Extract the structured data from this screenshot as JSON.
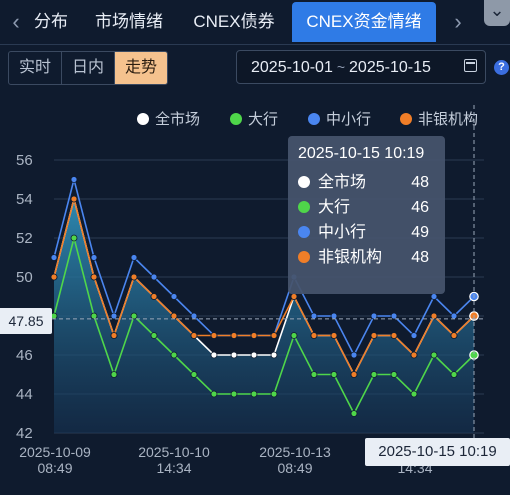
{
  "tabs": [
    {
      "label": "分布"
    },
    {
      "label": "市场情绪"
    },
    {
      "label": "CNEX债券"
    },
    {
      "label": "CNEX资金情绪"
    }
  ],
  "icons": {
    "prev": "chevron-left-icon",
    "next": "chevron-right-icon",
    "menu": "chevron-down-icon",
    "calendar": "calendar-icon",
    "help": "help-icon"
  },
  "range_buttons": [
    {
      "label": "实时"
    },
    {
      "label": "日内"
    },
    {
      "label": "走势"
    }
  ],
  "date_range": {
    "start": "2025-10-01",
    "separator": "~",
    "end": "2025-10-15"
  },
  "help": {
    "label": "?"
  },
  "colors": {
    "accent": "#2f7be6",
    "active_range": "#f5c28e"
  },
  "tooltip": {
    "title": "2025-10-15 10:19",
    "rows": [
      {
        "name": "全市场",
        "value": "48"
      },
      {
        "name": "大行",
        "value": "46"
      },
      {
        "name": "中小行",
        "value": "49"
      },
      {
        "name": "非银机构",
        "value": "48"
      }
    ]
  },
  "crosshair": {
    "y_label": "47.85",
    "x_label": "2025-10-15 10:19"
  },
  "chart_data": {
    "type": "line",
    "x_tick_labels": [
      {
        "line1": "2025-10-09",
        "line2": "08:49"
      },
      {
        "line1": "2025-10-10",
        "line2": "14:34"
      },
      {
        "line1": "2025-10-13",
        "line2": "08:49"
      },
      {
        "line1": "",
        "line2": "14:34"
      }
    ],
    "ylim": [
      42,
      56
    ],
    "yticks": [
      42,
      44,
      46,
      48,
      50,
      52,
      54,
      56
    ],
    "legend_position": "top-right",
    "grid": true,
    "series": [
      {
        "name": "全市场",
        "color": "#ffffff",
        "values": [
          50,
          54,
          50,
          47,
          50,
          49,
          48,
          47,
          46,
          46,
          46,
          46,
          49,
          47,
          47,
          45,
          47,
          47,
          46,
          48,
          47,
          48
        ]
      },
      {
        "name": "大行",
        "color": "#4fd64a",
        "values": [
          48,
          52,
          48,
          45,
          48,
          47,
          46,
          45,
          44,
          44,
          44,
          44,
          47,
          45,
          45,
          43,
          45,
          45,
          44,
          46,
          45,
          46
        ]
      },
      {
        "name": "中小行",
        "color": "#4a86f0",
        "values": [
          51,
          55,
          51,
          48,
          51,
          50,
          49,
          48,
          47,
          47,
          47,
          47,
          50,
          48,
          48,
          46,
          48,
          48,
          47,
          49,
          48,
          49
        ]
      },
      {
        "name": "非银机构",
        "color": "#f07e28",
        "values": [
          50,
          54,
          50,
          47,
          50,
          49,
          48,
          47,
          47,
          47,
          47,
          47,
          49,
          47,
          47,
          45,
          47,
          47,
          46,
          48,
          47,
          48
        ]
      }
    ]
  }
}
